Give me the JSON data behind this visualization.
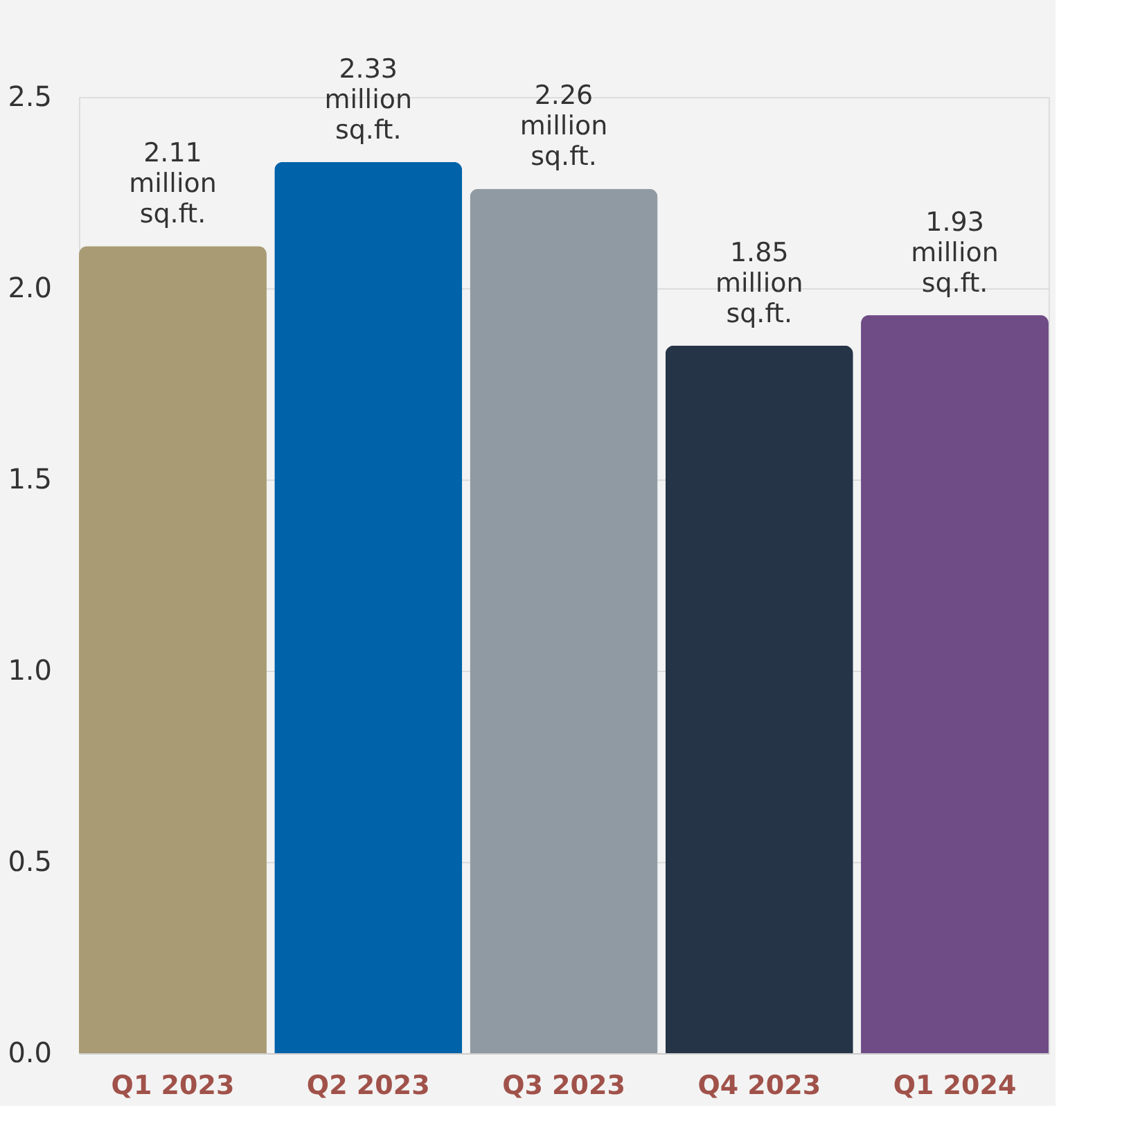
{
  "chart_data": {
    "type": "bar",
    "categories": [
      "Q1 2023",
      "Q2 2023",
      "Q3 2023",
      "Q4 2023",
      "Q1 2024"
    ],
    "values": [
      2.11,
      2.33,
      2.26,
      1.85,
      1.93
    ],
    "colors": [
      "#a99b74",
      "#0062a8",
      "#8f9aa3",
      "#253446",
      "#704c87"
    ],
    "value_labels": [
      "2.11 million sq.ft.",
      "2.33 million sq.ft.",
      "2.26 million sq.ft.",
      "1.85 million sq.ft.",
      "1.93 million sq.ft."
    ],
    "ylim": [
      0,
      2.5
    ],
    "yticks": [
      {
        "value": 0,
        "label": "0.0"
      },
      {
        "value": 0.5,
        "label": "0.5"
      },
      {
        "value": 1,
        "label": "1.0"
      },
      {
        "value": 1.5,
        "label": "1.5"
      },
      {
        "value": 2,
        "label": "2.0"
      },
      {
        "value": 2.5,
        "label": "2.5"
      }
    ],
    "grid": "y"
  }
}
